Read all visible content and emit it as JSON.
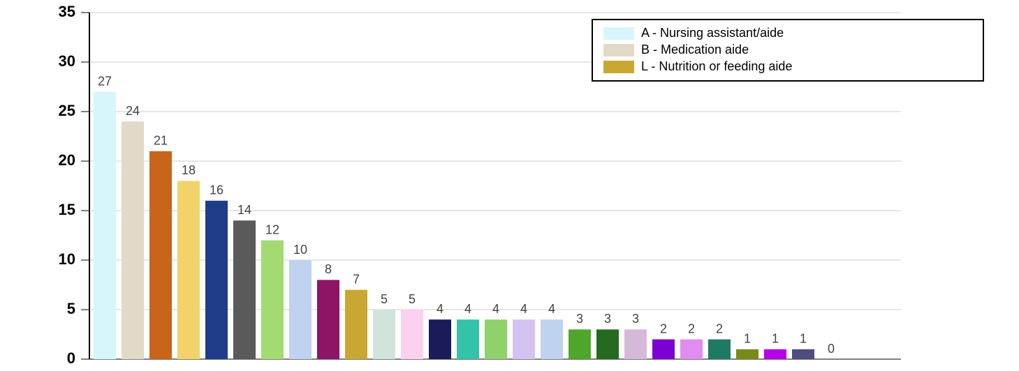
{
  "chart_data": {
    "type": "bar",
    "categories": [
      null,
      null,
      null,
      null,
      null,
      null,
      null,
      null,
      null,
      null,
      null,
      null,
      null,
      null,
      null,
      null,
      null,
      null,
      null,
      null,
      null,
      null,
      null,
      null,
      null,
      null,
      null
    ],
    "values": [
      27,
      24,
      21,
      18,
      16,
      14,
      12,
      10,
      8,
      7,
      5,
      5,
      4,
      4,
      4,
      4,
      4,
      3,
      3,
      3,
      2,
      2,
      2,
      1,
      1,
      1,
      0
    ],
    "colors": [
      "#d6f6fb",
      "#e2d9c6",
      "#c8651b",
      "#f2d36b",
      "#1f3c88",
      "#5a5a5a",
      "#a3da72",
      "#bfd2ef",
      "#8e1466",
      "#c8a832",
      "#d0e4dc",
      "#fcd0ef",
      "#1b1b5a",
      "#34c2a8",
      "#8fd16a",
      "#d4c3f0",
      "#bfd2ef",
      "#4ea72a",
      "#256b1f",
      "#d6b8d9",
      "#7a00d4",
      "#e18cf0",
      "#1f7a63",
      "#7a8a1a",
      "#b800e8",
      "#4d4d80",
      "#e05050"
    ],
    "ylim": [
      0,
      35
    ],
    "yticks": [
      0,
      5,
      10,
      15,
      20,
      25,
      30,
      35
    ],
    "grid": true,
    "legend": [
      {
        "label": "A - Nursing assistant/aide",
        "color": "#d6f6fb"
      },
      {
        "label": "B - Medication aide",
        "color": "#e2d9c6"
      },
      {
        "label": "L - Nutrition or feeding aide",
        "color": "#c8a832"
      }
    ],
    "legend_position": "upper right"
  }
}
